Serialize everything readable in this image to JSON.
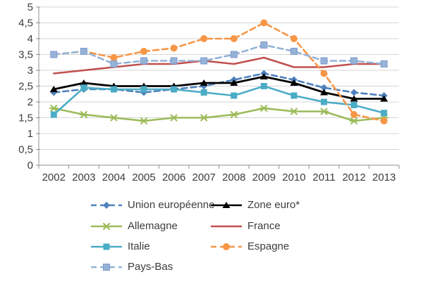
{
  "chart_data": {
    "type": "line",
    "title": "",
    "categories": [
      "2002",
      "2003",
      "2004",
      "2005",
      "2006",
      "2007",
      "2008",
      "2009",
      "2010",
      "2011",
      "2012",
      "2013"
    ],
    "x_axis": {
      "label": ""
    },
    "y_axis": {
      "label": "",
      "min": 0,
      "max": 5,
      "step": 0.5,
      "tick_labels": [
        "0",
        "0,5",
        "1",
        "1,5",
        "2",
        "2,5",
        "3",
        "3,5",
        "4",
        "4,5",
        "5"
      ]
    },
    "grid": true,
    "legend_position": "bottom",
    "colors": {
      "grid": "#d6d6d6",
      "axis": "#8f8f8f",
      "text": "#3d3d3d",
      "background": "#ffffff"
    },
    "series": [
      {
        "name": "Union européenne",
        "color": "#4f81bd",
        "line": "dashed",
        "marker": "diamond",
        "values": [
          2.3,
          2.4,
          2.4,
          2.3,
          2.4,
          2.5,
          2.7,
          2.9,
          2.7,
          2.45,
          2.3,
          2.2
        ]
      },
      {
        "name": "Zone euro*",
        "color": "#000000",
        "line": "solid",
        "marker": "triangle",
        "values": [
          2.4,
          2.6,
          2.5,
          2.5,
          2.5,
          2.6,
          2.6,
          2.8,
          2.6,
          2.3,
          2.1,
          2.1
        ]
      },
      {
        "name": "Allemagne",
        "color": "#9bbb59",
        "line": "solid",
        "marker": "star",
        "values": [
          1.8,
          1.6,
          1.5,
          1.4,
          1.5,
          1.5,
          1.6,
          1.8,
          1.7,
          1.7,
          1.4,
          1.5
        ]
      },
      {
        "name": "France",
        "color": "#c0504d",
        "line": "solid",
        "marker": "none",
        "values": [
          2.9,
          3.0,
          3.1,
          3.2,
          3.2,
          3.3,
          3.2,
          3.4,
          3.1,
          3.1,
          3.2,
          3.2
        ]
      },
      {
        "name": "Italie",
        "color": "#4bacc6",
        "line": "solid",
        "marker": "square",
        "values": [
          1.6,
          2.45,
          2.4,
          2.4,
          2.4,
          2.3,
          2.2,
          2.5,
          2.2,
          2.0,
          1.9,
          1.65
        ]
      },
      {
        "name": "Espagne",
        "color": "#f79646",
        "line": "dashed",
        "marker": "circle",
        "values": [
          3.5,
          3.6,
          3.4,
          3.6,
          3.7,
          4.0,
          4.0,
          4.5,
          4.0,
          2.9,
          1.6,
          1.4
        ]
      },
      {
        "name": "Pays-Bas",
        "color": "#95b3d7",
        "marker_border": "#7f9acf",
        "line": "dashed",
        "marker": "square",
        "values": [
          3.5,
          3.6,
          3.2,
          3.3,
          3.3,
          3.3,
          3.5,
          3.8,
          3.6,
          3.3,
          3.3,
          3.2
        ]
      }
    ],
    "legend_rows": [
      [
        0,
        1
      ],
      [
        2,
        3
      ],
      [
        4,
        5
      ],
      [
        6
      ]
    ]
  }
}
